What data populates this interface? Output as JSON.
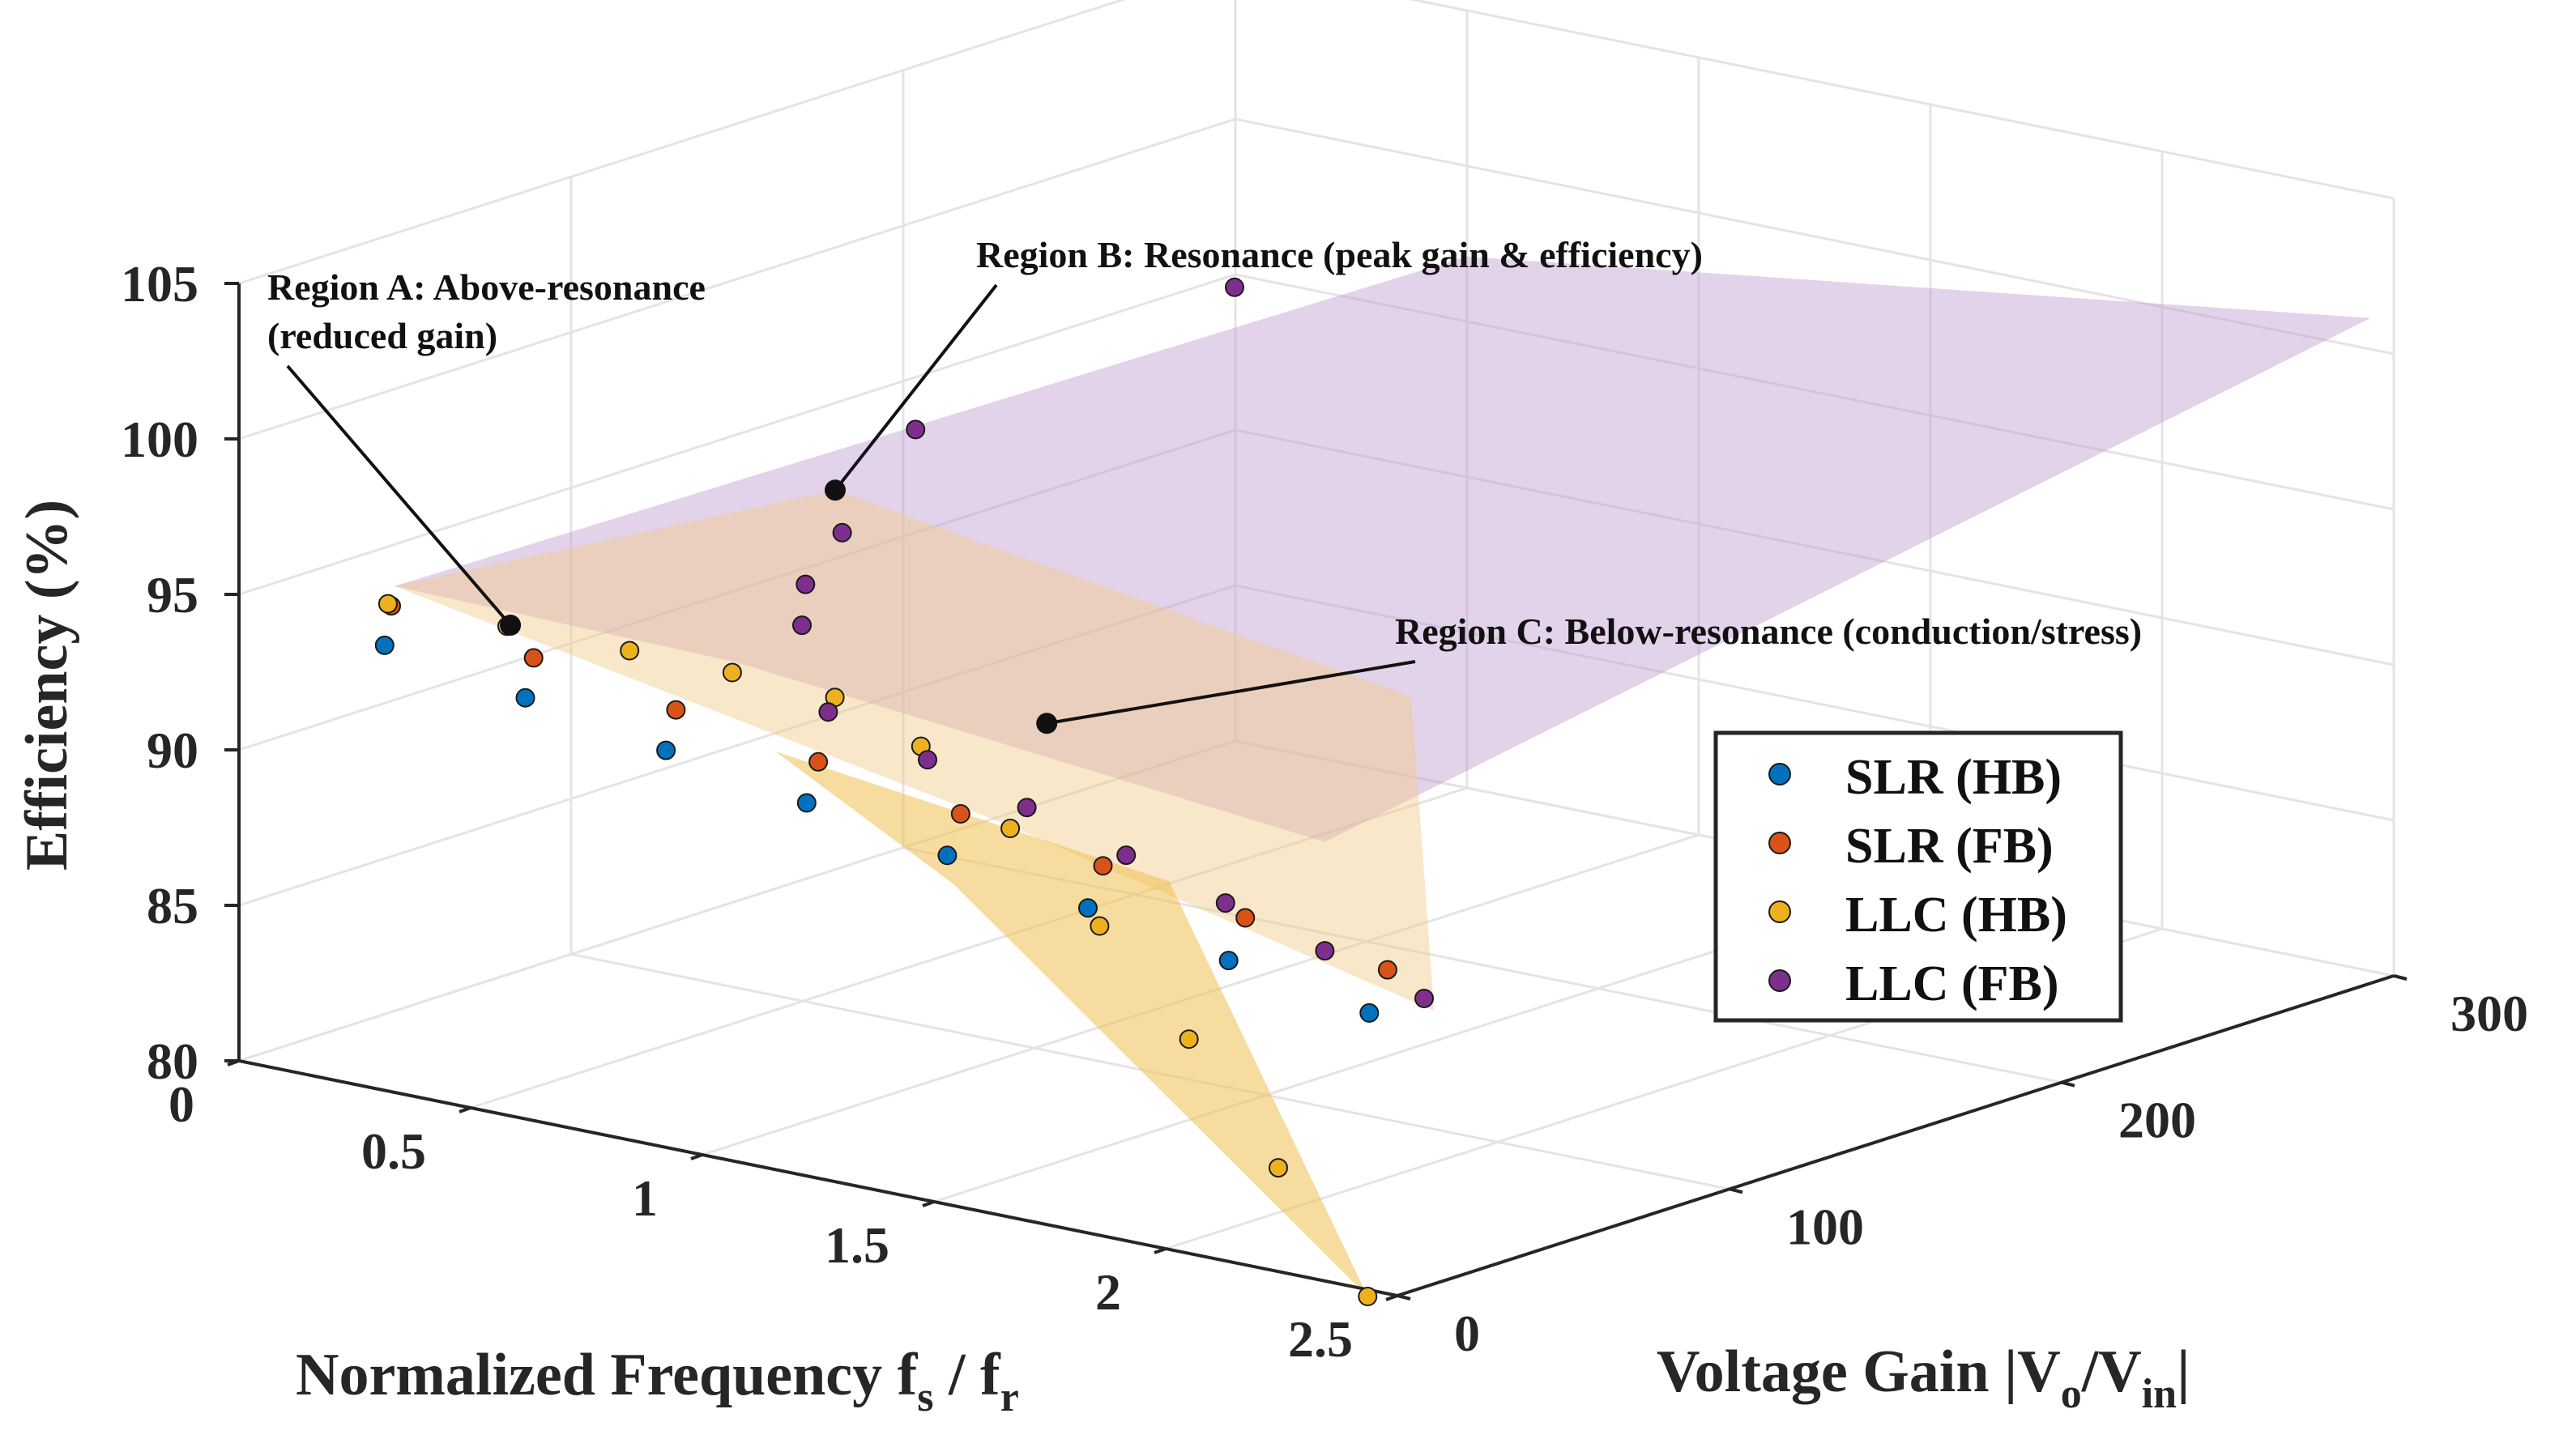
{
  "chart_data": {
    "type": "scatter3d",
    "title": "",
    "xlabel": "Normalized Frequency f_s / f_r",
    "xlabel_parts": {
      "main": "Normalized Frequency f",
      "sub1": "s",
      "mid": " / f",
      "sub2": "r"
    },
    "ylabel": "Voltage Gain |V_o/V_in|",
    "ylabel_parts": {
      "main": "Voltage Gain |V",
      "sub1": "o",
      "mid": "/V",
      "sub2": "in",
      "end": "|"
    },
    "zlabel": "Efficiency (%)",
    "xlim": [
      0,
      2.5
    ],
    "ylim": [
      0,
      300
    ],
    "zlim": [
      80,
      105
    ],
    "xticks": [
      0,
      0.5,
      1,
      1.5,
      2,
      2.5
    ],
    "xtick_labels": [
      "0",
      "0.5",
      "1",
      "1.5",
      "2",
      "2.5"
    ],
    "yticks": [
      0,
      100,
      200,
      300
    ],
    "ytick_labels": [
      "0",
      "100",
      "200",
      "300"
    ],
    "zticks": [
      80,
      85,
      90,
      95,
      100,
      105
    ],
    "ztick_labels": [
      "80",
      "85",
      "90",
      "95",
      "100",
      "105"
    ],
    "grid": true,
    "legend_position": "right",
    "series": [
      {
        "name": "SLR (HB)",
        "color": "#0072BD",
        "x": [
          0.3,
          0.6,
          0.9,
          1.2,
          1.5,
          1.8,
          2.1,
          2.4
        ],
        "y": [
          2,
          2.5,
          3,
          3.5,
          4,
          4.5,
          5,
          5.5
        ],
        "z": [
          94.2,
          93.4,
          92.6,
          91.8,
          91.0,
          90.2,
          89.4,
          88.6
        ]
      },
      {
        "name": "SLR (FB)",
        "color": "#D95319",
        "x": [
          0.3,
          0.6,
          0.9,
          1.2,
          1.5,
          1.8,
          2.1,
          2.4
        ],
        "y": [
          4,
          5,
          6,
          7,
          8,
          9,
          10,
          11
        ],
        "z": [
          95.4,
          94.6,
          93.8,
          93.0,
          92.2,
          91.4,
          90.6,
          89.8
        ]
      },
      {
        "name": "LLC (HB)",
        "color": "#EDB120",
        "x": [
          0.3,
          0.55,
          0.8,
          1.0,
          1.2,
          1.4,
          1.6,
          1.8,
          2.0,
          2.2,
          2.4
        ],
        "y": [
          3,
          4,
          6,
          9,
          12,
          10,
          9,
          8,
          7,
          6,
          5
        ],
        "z": [
          95.5,
          95.5,
          95.4,
          95.2,
          94.9,
          94.0,
          92.0,
          89.5,
          86.5,
          83.0,
          79.5
        ]
      },
      {
        "name": "LLC (FB)",
        "color": "#7E2F8E",
        "x": [
          1.2,
          1.4,
          1.6,
          1.8,
          2.0,
          2.2,
          2.4,
          1.0,
          0.9,
          0.8,
          0.6,
          0.5
        ],
        "y": [
          10,
          12,
          14,
          16,
          18,
          20,
          22,
          30,
          45,
          70,
          120,
          230
        ],
        "z": [
          94.5,
          93.5,
          92.5,
          91.5,
          90.5,
          89.5,
          88.5,
          96.0,
          96.5,
          97.0,
          98.0,
          98.5
        ]
      }
    ],
    "annotations": [
      {
        "text_lines": [
          "Region A: Above-resonance",
          "(reduced gain)"
        ],
        "target": {
          "x": 0.55,
          "y": 5,
          "z": 95.5
        }
      },
      {
        "text_lines": [
          "Region B: Resonance (peak gain & efficiency)"
        ],
        "target": {
          "x": 1.0,
          "y": 40,
          "z": 100
        }
      },
      {
        "text_lines": [
          "Region C: Below-resonance (conduction/stress)"
        ],
        "target": {
          "x": 1.6,
          "y": 20,
          "z": 95
        }
      }
    ]
  }
}
